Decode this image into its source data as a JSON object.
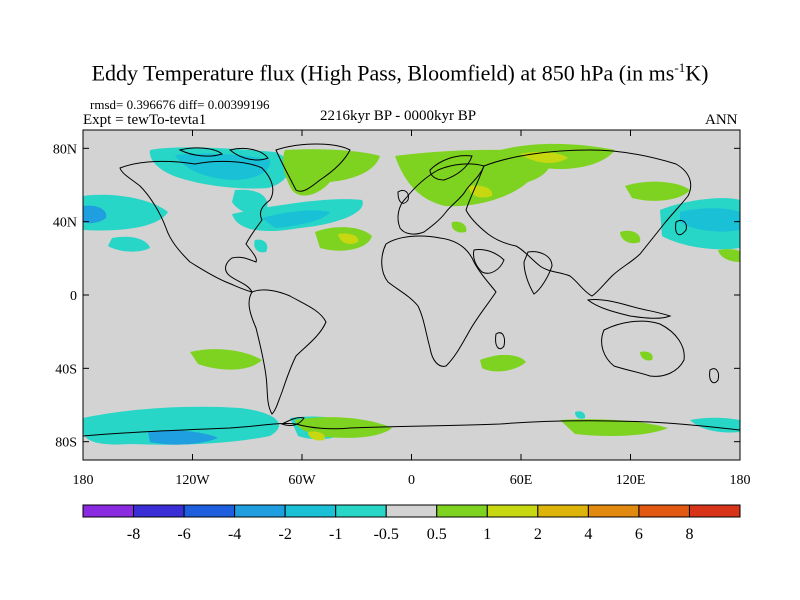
{
  "title_main": "Eddy Temperature flux (High Pass, Bloomfield) at 850 hPa (in ms",
  "title_sup": "-1",
  "title_end": "K)",
  "stats": "rmsd= 0.396676 diff= 0.00399196",
  "expt": "Expt = tewTo-tevta1",
  "period": "2216kyr BP - 0000kyr BP",
  "season": "ANN",
  "lat_ticks": [
    "80N",
    "40N",
    "0",
    "40S",
    "80S"
  ],
  "lon_ticks": [
    "180",
    "120W",
    "60W",
    "0",
    "60E",
    "120E",
    "180"
  ],
  "colorbar": {
    "labels": [
      "-8",
      "-6",
      "-4",
      "-2",
      "-1",
      "-0.5",
      "0.5",
      "1",
      "2",
      "4",
      "6",
      "8"
    ],
    "colors": [
      "#8a2be2",
      "#3a2fd6",
      "#1e5fe0",
      "#1f9fe0",
      "#19c0d6",
      "#27d6c6",
      "#d3d3d3",
      "#7ed320",
      "#c8d810",
      "#dcb40a",
      "#e28a10",
      "#e25a12",
      "#d8341a"
    ]
  },
  "colors": {
    "land_bg": "#d3d3d3",
    "coast": "#000000",
    "green": "#7ed320",
    "yellow": "#c8d810",
    "cyan": "#27d6c6",
    "teal": "#19c0d6",
    "blue": "#1f9fe0"
  }
}
